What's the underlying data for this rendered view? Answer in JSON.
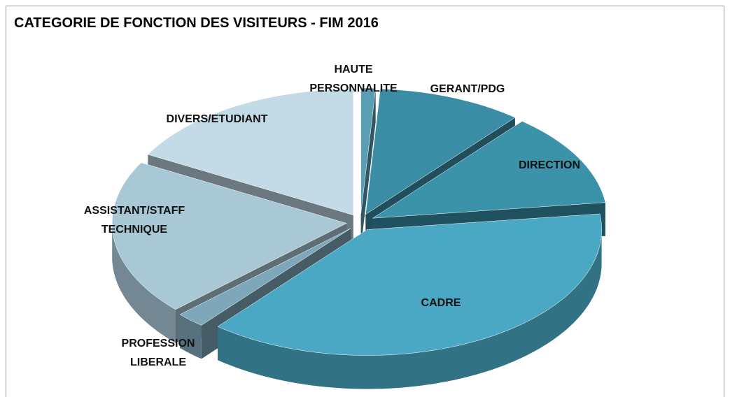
{
  "chart_data": {
    "type": "pie",
    "title": "CATEGORIE DE FONCTION DES VISITEURS - FIM 2016",
    "categories": [
      "HAUTE PERSONNALITE",
      "GERANT/PDG",
      "DIRECTION",
      "CADRE",
      "PROFESSION LIBERALE",
      "ASSISTANT/STAFF TECHNIQUE",
      "DIVERS/ETUDIANT"
    ],
    "values": [
      1,
      10,
      12,
      38,
      2,
      20,
      17
    ],
    "colors": [
      "#5b9fb5",
      "#3a8da4",
      "#3b93aa",
      "#4aa8c4",
      "#7ea8ba",
      "#a9c8d6",
      "#c3dbe6"
    ]
  }
}
